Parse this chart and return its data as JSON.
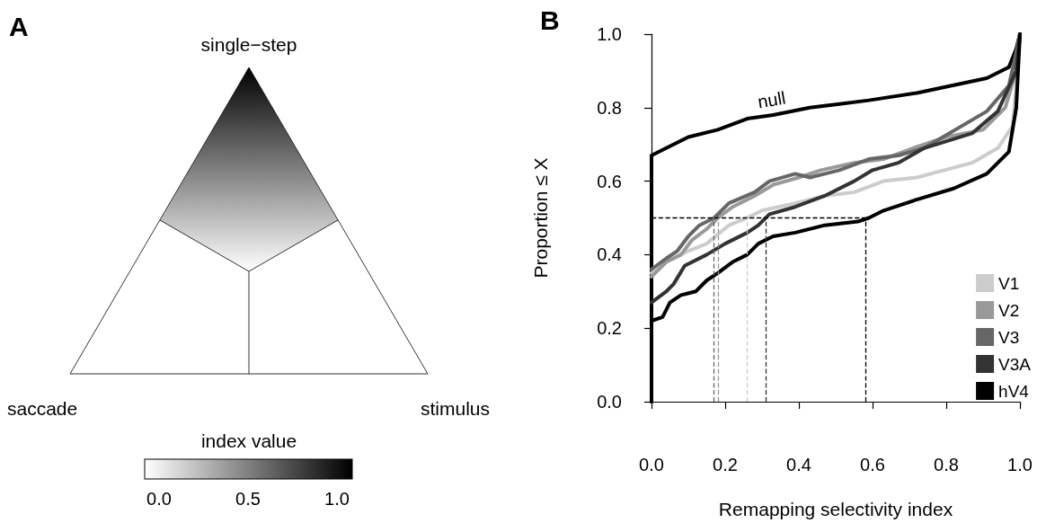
{
  "chart_data": [
    {
      "type": "other",
      "title": "A",
      "annotations": [
        "single−step",
        "saccade",
        "stimulus",
        "0.0",
        "0.5",
        "1.0"
      ],
      "clabel": "index value"
    },
    {
      "type": "line",
      "title": "B",
      "xlabel": "Remapping selectivity index",
      "ylabel": "Proportion ≤ X",
      "xlim": [
        0,
        1
      ],
      "ylim": [
        0,
        1
      ],
      "xticks": [
        {
          "value": 0,
          "label": "0.0"
        },
        {
          "value": 0.2,
          "label": "0.2"
        },
        {
          "value": 0.4,
          "label": "0.4"
        },
        {
          "value": 0.6,
          "label": "0.6"
        },
        {
          "value": 0.8,
          "label": "0.8"
        },
        {
          "value": 1,
          "label": "1.0"
        }
      ],
      "yticks": [
        {
          "value": 0,
          "label": "0.0"
        },
        {
          "value": 0.2,
          "label": "0.2"
        },
        {
          "value": 0.4,
          "label": "0.4"
        },
        {
          "value": 0.6,
          "label": "0.6"
        },
        {
          "value": 0.8,
          "label": "0.8"
        },
        {
          "value": 1,
          "label": "1.0"
        }
      ],
      "grid": false,
      "legend": "bottom right",
      "marker": "none",
      "line_style": "solid",
      "series": [
        {
          "color": "#000000",
          "x": [
            0,
            0,
            0.04,
            0.1,
            0.18,
            0.26,
            0.33,
            0.43,
            0.51,
            0.59,
            0.72,
            0.91,
            0.97,
            0.99,
            1
          ],
          "values": [
            0,
            0.67,
            0.69,
            0.72,
            0.74,
            0.77,
            0.78,
            0.8,
            0.81,
            0.82,
            0.84,
            0.88,
            0.91,
            0.96,
            1
          ]
        },
        {
          "name": "V1",
          "color": "#cccccc",
          "x": [
            0,
            0.04,
            0.1,
            0.15,
            0.21,
            0.26,
            0.3,
            0.39,
            0.47,
            0.55,
            0.63,
            0.72,
            0.87,
            0.94,
            0.98,
            0.99,
            1
          ],
          "values": [
            0.35,
            0.38,
            0.41,
            0.43,
            0.48,
            0.5,
            0.52,
            0.54,
            0.56,
            0.57,
            0.6,
            0.61,
            0.65,
            0.69,
            0.75,
            0.86,
            1
          ]
        },
        {
          "name": "V2",
          "color": "#999999",
          "x": [
            0,
            0.04,
            0.08,
            0.11,
            0.15,
            0.18,
            0.22,
            0.28,
            0.33,
            0.4,
            0.46,
            0.55,
            0.63,
            0.71,
            0.8,
            0.9,
            0.96,
            0.99,
            1
          ],
          "values": [
            0.34,
            0.38,
            0.4,
            0.44,
            0.47,
            0.5,
            0.53,
            0.56,
            0.59,
            0.61,
            0.63,
            0.65,
            0.66,
            0.69,
            0.72,
            0.74,
            0.8,
            0.9,
            1
          ]
        },
        {
          "name": "V3",
          "color": "#666666",
          "x": [
            0,
            0.04,
            0.07,
            0.1,
            0.13,
            0.17,
            0.21,
            0.28,
            0.32,
            0.39,
            0.43,
            0.51,
            0.59,
            0.67,
            0.74,
            0.91,
            0.97,
            0.99,
            1
          ],
          "values": [
            0.36,
            0.39,
            0.41,
            0.45,
            0.48,
            0.5,
            0.54,
            0.57,
            0.6,
            0.62,
            0.61,
            0.63,
            0.66,
            0.67,
            0.69,
            0.79,
            0.86,
            0.95,
            1
          ]
        },
        {
          "name": "V3A",
          "color": "#333333",
          "x": [
            0,
            0.04,
            0.06,
            0.09,
            0.15,
            0.2,
            0.26,
            0.29,
            0.32,
            0.39,
            0.47,
            0.55,
            0.6,
            0.67,
            0.74,
            0.87,
            0.94,
            0.99,
            1
          ],
          "values": [
            0.27,
            0.3,
            0.32,
            0.37,
            0.4,
            0.43,
            0.46,
            0.48,
            0.51,
            0.53,
            0.56,
            0.6,
            0.63,
            0.65,
            0.69,
            0.73,
            0.79,
            0.9,
            1
          ]
        },
        {
          "name": "hV4",
          "color": "#000000",
          "x": [
            0,
            0,
            0.03,
            0.05,
            0.08,
            0.12,
            0.15,
            0.18,
            0.22,
            0.26,
            0.29,
            0.33,
            0.39,
            0.47,
            0.56,
            0.59,
            0.63,
            0.72,
            0.82,
            0.91,
            0.97,
            0.99,
            1
          ],
          "values": [
            0,
            0.22,
            0.23,
            0.27,
            0.29,
            0.3,
            0.33,
            0.35,
            0.38,
            0.4,
            0.43,
            0.45,
            0.46,
            0.48,
            0.49,
            0.5,
            0.52,
            0.55,
            0.58,
            0.62,
            0.68,
            0.8,
            1
          ]
        }
      ],
      "ref_lines": [
        {
          "axis": "y",
          "value": 0.5,
          "color": "#000000",
          "line_style": "dashed"
        },
        {
          "axis": "x",
          "value": 0.26,
          "color": "#cccccc",
          "line_style": "dashed"
        },
        {
          "axis": "x",
          "value": 0.18,
          "color": "#999999",
          "line_style": "dashed"
        },
        {
          "axis": "x",
          "value": 0.17,
          "color": "#666666",
          "line_style": "dashed"
        },
        {
          "axis": "x",
          "value": 0.31,
          "color": "#333333",
          "line_style": "dashed"
        },
        {
          "axis": "x",
          "value": 0.58,
          "color": "#000000",
          "line_style": "dashed"
        }
      ],
      "annotations": [
        {
          "text": "null",
          "x": 0.33,
          "y": 0.79
        }
      ]
    }
  ]
}
